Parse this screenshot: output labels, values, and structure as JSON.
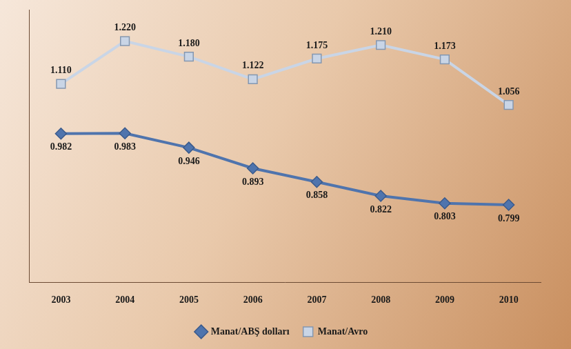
{
  "chart_data": {
    "type": "line",
    "categories": [
      "2003",
      "2004",
      "2005",
      "2006",
      "2007",
      "2008",
      "2009",
      "2010"
    ],
    "series": [
      {
        "name": "Manat/ABŞ dolları",
        "color": "#4f74ad",
        "marker": "diamond",
        "values": [
          0.982,
          0.983,
          0.946,
          0.893,
          0.858,
          0.822,
          0.803,
          0.799
        ],
        "value_labels": [
          "0.982",
          "0.983",
          "0.946",
          "0.893",
          "0.858",
          "0.822",
          "0.803",
          "0.799"
        ]
      },
      {
        "name": "Manat/Avro",
        "color": "#c9d5e6",
        "marker": "square",
        "values": [
          1.11,
          1.22,
          1.18,
          1.122,
          1.175,
          1.21,
          1.173,
          1.056
        ],
        "value_labels": [
          "1.110",
          "1.220",
          "1.180",
          "1.122",
          "1.175",
          "1.210",
          "1.173",
          "1.056"
        ]
      }
    ],
    "ylim": [
      0.6,
      1.3
    ],
    "grid": false,
    "legend": "bottom",
    "data_labels": true,
    "tick_labels": "x"
  }
}
